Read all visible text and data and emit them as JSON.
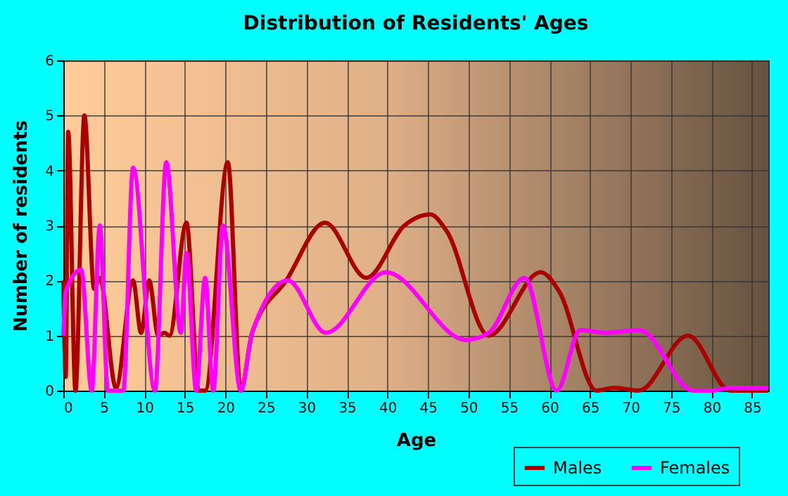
{
  "chart_data": {
    "type": "line",
    "title": "Distribution of Residents' Ages",
    "xlabel": "Age",
    "ylabel": "Number of residents",
    "xlim": [
      0,
      87
    ],
    "ylim": [
      0,
      6
    ],
    "xticks": [
      0,
      5,
      10,
      15,
      20,
      25,
      30,
      35,
      40,
      45,
      50,
      55,
      60,
      65,
      70,
      75,
      80,
      85
    ],
    "yticks": [
      0,
      1,
      2,
      3,
      4,
      5,
      6
    ],
    "grid": true,
    "legend": "bottom right",
    "line_style": "solid",
    "marker": "none",
    "series": [
      {
        "name": "Males",
        "color": "#aa0000",
        "x": [
          0,
          0.3,
          0.6,
          1.5,
          2.6,
          3.8,
          4.5,
          6.5,
          8.6,
          9.6,
          10.6,
          11.7,
          12.5,
          13.1,
          15.2,
          16.7,
          17.5,
          20.3,
          21.9,
          23.3,
          27.5,
          32.3,
          37.4,
          42.1,
          45.3,
          47.3,
          52.5,
          58.9,
          61.2,
          65.8,
          68,
          71,
          77.1,
          82.3,
          87
        ],
        "values": [
          2,
          0.25,
          4.7,
          0,
          5,
          1.85,
          2.05,
          0.05,
          2,
          1.05,
          2,
          1,
          1.05,
          1,
          3.05,
          0,
          0,
          4.15,
          0,
          1.05,
          2,
          3.05,
          2.05,
          3,
          3.2,
          2.9,
          1,
          2.15,
          1.8,
          0,
          0.05,
          0,
          1,
          0,
          0
        ]
      },
      {
        "name": "Females",
        "color": "#ff00ff",
        "x": [
          0,
          0.3,
          2.2,
          3.5,
          4.5,
          5.5,
          7.4,
          8.6,
          11.3,
          12.7,
          14.5,
          15.2,
          16.4,
          17.5,
          18.5,
          19.7,
          21.9,
          23.3,
          27.7,
          32.4,
          39.8,
          49.7,
          52.5,
          56.9,
          60.9,
          63.8,
          67,
          71.1,
          77.7,
          80,
          82.6,
          87
        ],
        "values": [
          1,
          1.8,
          2.2,
          0,
          3,
          0,
          0,
          4.05,
          0,
          4.15,
          1.05,
          2.5,
          0,
          2.05,
          0,
          3,
          0,
          1.05,
          2,
          1.05,
          2.15,
          0.92,
          1.05,
          2.05,
          0,
          1.1,
          1.05,
          1.1,
          0,
          0,
          0.05,
          0.05
        ]
      }
    ]
  }
}
